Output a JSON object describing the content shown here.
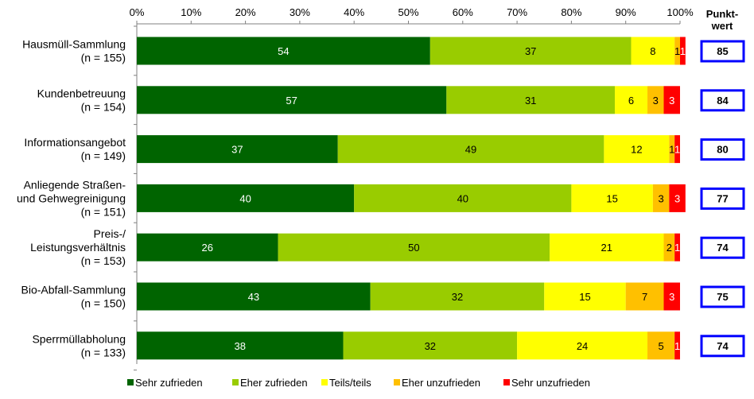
{
  "chart_data": {
    "type": "bar",
    "orientation": "horizontal",
    "stacked": true,
    "xlim": [
      0,
      100
    ],
    "x_ticks": [
      "0%",
      "10%",
      "20%",
      "30%",
      "40%",
      "50%",
      "60%",
      "70%",
      "80%",
      "90%",
      "100%"
    ],
    "categories": [
      [
        "Hausmüll-Sammlung",
        "(n = 155)"
      ],
      [
        "Kundenbetreuung",
        "(n = 154)"
      ],
      [
        "Informationsangebot",
        "(n = 149)"
      ],
      [
        "Anliegende Straßen-",
        "und Gehwegreinigung",
        "(n = 151)"
      ],
      [
        "Preis-/",
        "Leistungsverhältnis",
        "(n = 153)"
      ],
      [
        "Bio-Abfall-Sammlung",
        "(n = 150)"
      ],
      [
        "Sperrmüllabholung",
        "(n = 133)"
      ]
    ],
    "series": [
      {
        "name": "Sehr zufrieden",
        "color": "#006400",
        "label_color": "#ffffff",
        "values": [
          54,
          57,
          37,
          40,
          26,
          43,
          38
        ]
      },
      {
        "name": "Eher zufrieden",
        "color": "#99cc00",
        "label_color": "#000000",
        "values": [
          37,
          31,
          49,
          40,
          50,
          32,
          32
        ]
      },
      {
        "name": "Teils/teils",
        "color": "#ffff00",
        "label_color": "#000000",
        "values": [
          8,
          6,
          12,
          15,
          21,
          15,
          24
        ]
      },
      {
        "name": "Eher unzufrieden",
        "color": "#ffc000",
        "label_color": "#000000",
        "values": [
          1,
          3,
          1,
          3,
          2,
          7,
          5
        ]
      },
      {
        "name": "Sehr unzufrieden",
        "color": "#ff0000",
        "label_color": "#ffffff",
        "values": [
          1,
          3,
          1,
          3,
          1,
          3,
          1
        ]
      }
    ],
    "score_header": [
      "Punkt-",
      "wert"
    ],
    "scores": [
      85,
      84,
      80,
      77,
      74,
      75,
      74
    ],
    "score_box_color": "#0000ff",
    "legend_position": "bottom",
    "grid": false
  }
}
